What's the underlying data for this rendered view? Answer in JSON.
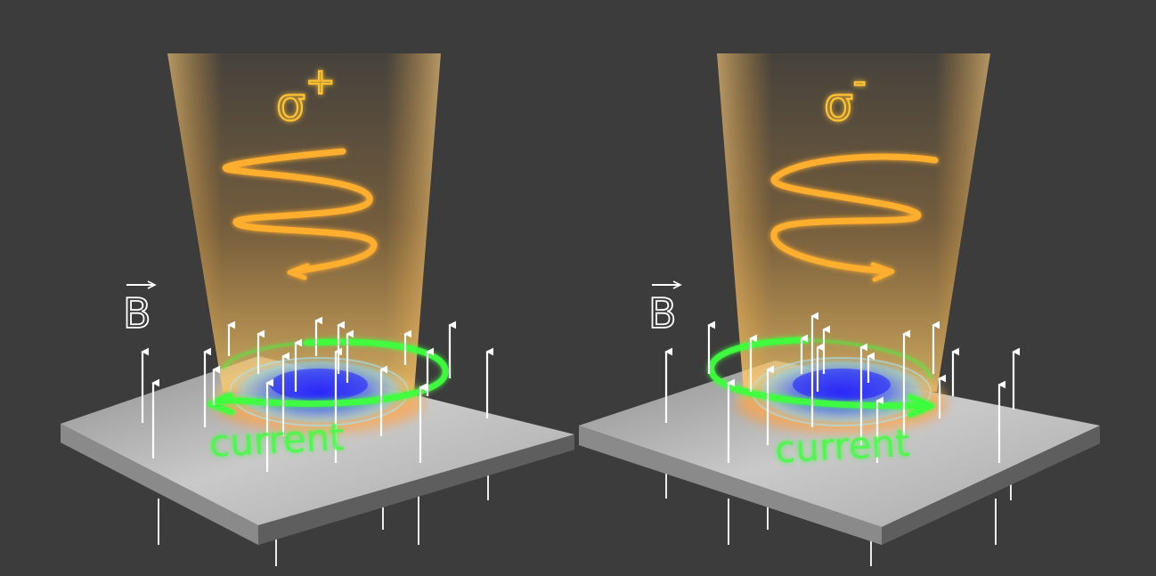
{
  "panels": [
    {
      "id": "left",
      "polarization": {
        "base": "σ",
        "sup": "+"
      },
      "field_label": "B",
      "current_label": "current",
      "rotation": "counterclockwise"
    },
    {
      "id": "right",
      "polarization": {
        "base": "σ",
        "sup": "-"
      },
      "field_label": "B",
      "current_label": "current",
      "rotation": "clockwise"
    }
  ],
  "colors": {
    "background": "#3c3c3c",
    "beam": "#ffb040",
    "helix": "#ffae2e",
    "sigma_text": "#ffc233",
    "current": "#3dff3d",
    "slab_top": "#bdbdbd",
    "slab_front": "#7a7a7a",
    "arrow": "#ffffff",
    "ring_blue": "#3a5cff"
  }
}
